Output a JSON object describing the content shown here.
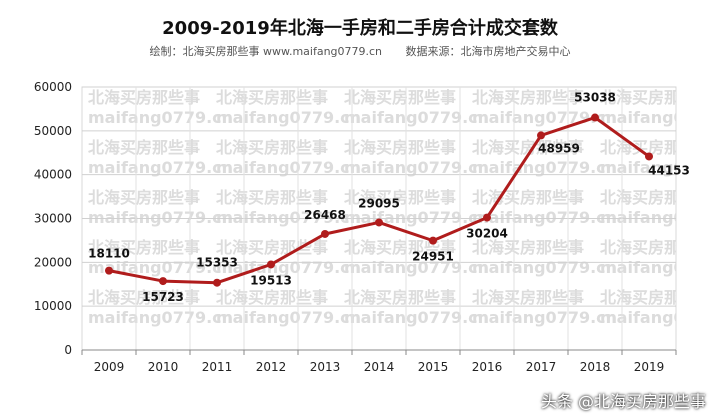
{
  "header": {
    "title": "2009-2019年北海一手房和二手房合计成交套数",
    "credit": "绘制：北海买房那些事 www.maifang0779.cn",
    "source": "数据来源：北海市房地产交易中心"
  },
  "watermark": {
    "line1": "北海买房那些事",
    "line2": "maifang0779.cn"
  },
  "footer": {
    "credit": "头条 @北海买房那些事"
  },
  "chart_data": {
    "type": "line",
    "title": "2009-2019年北海一手房和二手房合计成交套数",
    "xlabel": "",
    "ylabel": "",
    "categories": [
      "2009",
      "2010",
      "2011",
      "2012",
      "2013",
      "2014",
      "2015",
      "2016",
      "2017",
      "2018",
      "2019"
    ],
    "series": [
      {
        "values": [
          18110,
          15723,
          15353,
          19513,
          26468,
          29095,
          24951,
          30204,
          48959,
          53038,
          44153
        ]
      }
    ],
    "ylim": [
      0,
      60000
    ],
    "yticks": [
      0,
      10000,
      20000,
      30000,
      40000,
      50000,
      60000
    ],
    "grid": true,
    "line_color": "#b01c1c"
  }
}
